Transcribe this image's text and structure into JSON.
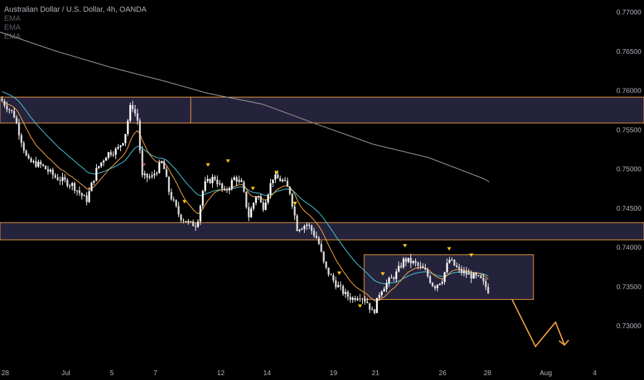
{
  "chart_data": {
    "type": "candlestick",
    "title": "Australian Dollar / U.S. Dollar, 4h, OANDA",
    "indicators": [
      "EMA",
      "EMA",
      "EMA"
    ],
    "ylim": [
      0.7275,
      0.771
    ],
    "y_ticks": [
      "0.77000",
      "0.76500",
      "0.76000",
      "0.75500",
      "0.75000",
      "0.74500",
      "0.74000",
      "0.73500",
      "0.73000"
    ],
    "x_ticks": [
      "28",
      "Jul",
      "5",
      "7",
      "12",
      "14",
      "19",
      "21",
      "26",
      "28",
      "Aug",
      "4"
    ],
    "colors": {
      "background": "#000000",
      "candle": "#ffffff",
      "ema_fast": "#f7a145",
      "ema_mid": "#45b5c9",
      "ema_slow": "#8a8a8a",
      "zone_fill": "#2b2945",
      "zone_border": "#f7a145",
      "marker": "#f5c518",
      "projection": "#f7a145"
    },
    "zones": [
      {
        "name": "resistance-zone",
        "low": 0.7559,
        "high": 0.7592
      },
      {
        "name": "support-zone",
        "low": 0.741,
        "high": 0.7432
      },
      {
        "name": "range-box",
        "low": 0.7334,
        "high": 0.7391
      }
    ],
    "projection": [
      0.7334,
      0.7274,
      0.7305,
      0.7276
    ]
  }
}
